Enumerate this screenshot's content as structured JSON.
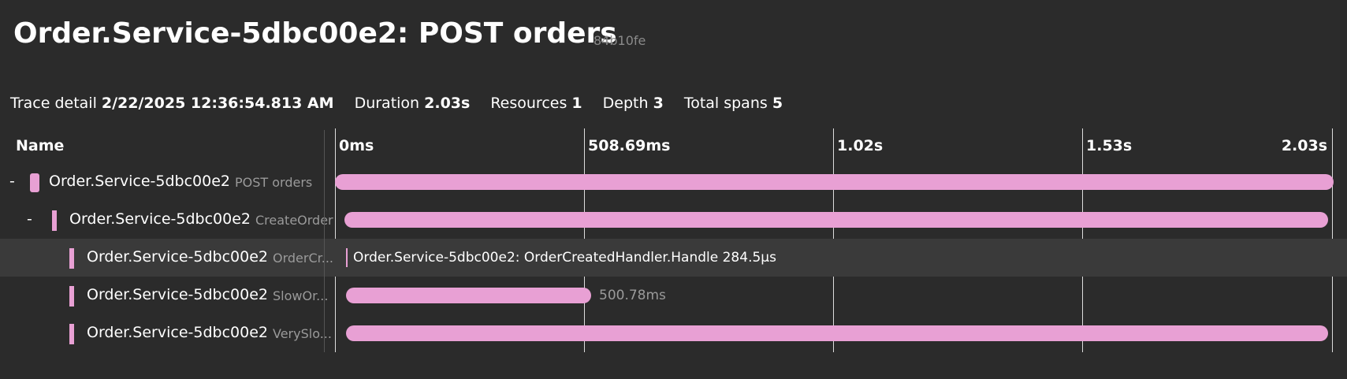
{
  "header": {
    "title": "Order.Service-5dbc00e2: POST orders",
    "trace_id": "84b10fe"
  },
  "summary": [
    {
      "label": "Trace detail",
      "value": "2/22/2025 12:36:54.813 AM"
    },
    {
      "label": "Duration",
      "value": "2.03s"
    },
    {
      "label": "Resources",
      "value": "1"
    },
    {
      "label": "Depth",
      "value": "3"
    },
    {
      "label": "Total spans",
      "value": "5"
    }
  ],
  "columns": {
    "name": "Name",
    "ticks": [
      "0ms",
      "508.69ms",
      "1.02s",
      "1.53s",
      "2.03s"
    ]
  },
  "spans": [
    {
      "toggle": "-",
      "service": "Order.Service-5dbc00e2",
      "operation": "POST orders"
    },
    {
      "toggle": "-",
      "service": "Order.Service-5dbc00e2",
      "operation": "CreateOrder"
    },
    {
      "service": "Order.Service-5dbc00e2",
      "operation": "OrderCr...",
      "bar_label": "Order.Service-5dbc00e2: OrderCreatedHandler.Handle 284.5µs"
    },
    {
      "service": "Order.Service-5dbc00e2",
      "operation": "SlowOr...",
      "bar_label": "500.78ms"
    },
    {
      "service": "Order.Service-5dbc00e2",
      "operation": "VerySlo..."
    }
  ]
}
